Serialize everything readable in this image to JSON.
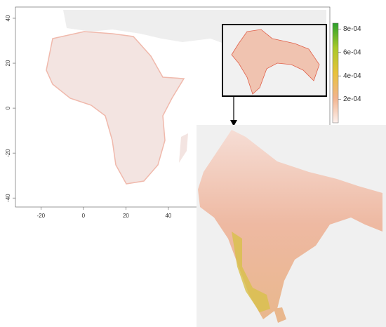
{
  "map": {
    "xlim": [
      -32,
      116
    ],
    "ylim": [
      -44,
      45
    ],
    "xticks": [
      -20,
      0,
      20,
      40
    ],
    "yticks": [
      -40,
      -20,
      0,
      20,
      40
    ]
  },
  "legend": {
    "lim": [
      0,
      0.00085
    ],
    "ticks": [
      {
        "value": 0.0008,
        "label": "8e-04"
      },
      {
        "value": 0.0006,
        "label": "6e-04"
      },
      {
        "value": 0.0004,
        "label": "4e-04"
      },
      {
        "value": 0.0002,
        "label": "2e-04"
      }
    ]
  }
}
